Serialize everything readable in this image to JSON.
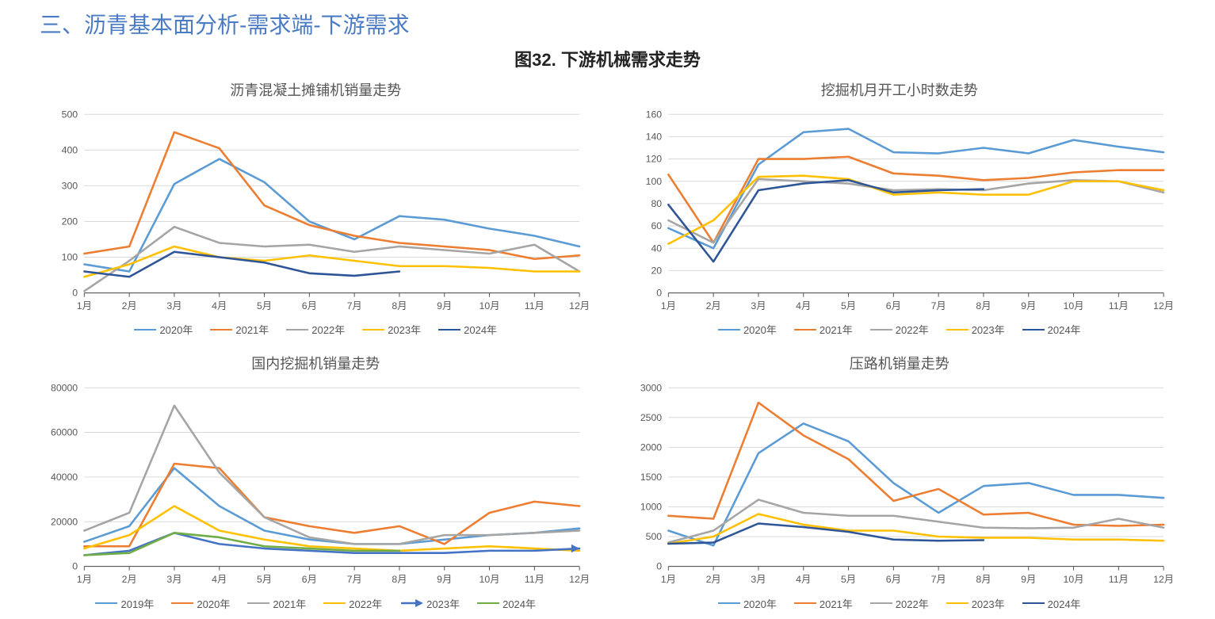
{
  "page_title": "三、沥青基本面分析-需求端-下游需求",
  "figure_title": "图32. 下游机械需求走势",
  "months": [
    "1月",
    "2月",
    "3月",
    "4月",
    "5月",
    "6月",
    "7月",
    "8月",
    "9月",
    "10月",
    "11月",
    "12月"
  ],
  "colors": {
    "c2019": "#5b9bd5",
    "c2020": "#5b9bd5",
    "c2021": "#ed7d31",
    "c2022": "#a5a5a5",
    "c2023": "#ffc000",
    "c2023arrow": "#4472c4",
    "c2024": "#2e5597",
    "c2024green": "#70ad47",
    "grid": "#d9d9d9",
    "axis": "#595959",
    "text": "#595959"
  },
  "charts": [
    {
      "id": "chart1",
      "title": "沥青混凝土摊铺机销量走势",
      "ylim": [
        0,
        500
      ],
      "ytick_step": 100,
      "legend_style": "standard",
      "series": [
        {
          "name": "2020年",
          "color": "c2020",
          "values": [
            80,
            60,
            305,
            375,
            310,
            200,
            150,
            215,
            205,
            180,
            160,
            130
          ]
        },
        {
          "name": "2021年",
          "color": "c2021",
          "values": [
            110,
            130,
            450,
            405,
            245,
            190,
            160,
            140,
            130,
            120,
            95,
            105
          ]
        },
        {
          "name": "2022年",
          "color": "c2022",
          "values": [
            5,
            90,
            185,
            140,
            130,
            135,
            115,
            130,
            120,
            110,
            135,
            60
          ]
        },
        {
          "name": "2023年",
          "color": "c2023",
          "values": [
            45,
            80,
            130,
            100,
            90,
            105,
            90,
            75,
            75,
            70,
            60,
            60
          ]
        },
        {
          "name": "2024年",
          "color": "c2024",
          "values": [
            60,
            45,
            115,
            100,
            85,
            55,
            48,
            60,
            null,
            null,
            null,
            null
          ]
        }
      ]
    },
    {
      "id": "chart2",
      "title": "挖掘机月开工小时数走势",
      "ylim": [
        0,
        160
      ],
      "ytick_step": 20,
      "legend_style": "standard",
      "series": [
        {
          "name": "2020年",
          "color": "c2020",
          "values": [
            58,
            40,
            115,
            144,
            147,
            126,
            125,
            130,
            125,
            137,
            131,
            126
          ]
        },
        {
          "name": "2021年",
          "color": "c2021",
          "values": [
            106,
            45,
            120,
            120,
            122,
            107,
            105,
            101,
            103,
            108,
            110,
            110
          ]
        },
        {
          "name": "2022年",
          "color": "c2022",
          "values": [
            65,
            45,
            102,
            100,
            98,
            92,
            93,
            92,
            98,
            101,
            100,
            90
          ]
        },
        {
          "name": "2023年",
          "color": "c2023",
          "values": [
            44,
            65,
            104,
            105,
            102,
            88,
            90,
            88,
            88,
            100,
            100,
            92
          ]
        },
        {
          "name": "2024年",
          "color": "c2024",
          "values": [
            79,
            28,
            92,
            98,
            101,
            90,
            92,
            93,
            null,
            null,
            null,
            null
          ]
        }
      ]
    },
    {
      "id": "chart3",
      "title": "国内挖掘机销量走势",
      "ylim": [
        0,
        80000
      ],
      "ytick_step": 20000,
      "legend_style": "arrow",
      "series": [
        {
          "name": "2019年",
          "color": "c2019",
          "values": [
            11000,
            18000,
            44000,
            27000,
            16000,
            12000,
            10000,
            10000,
            12000,
            14000,
            15000,
            17000
          ]
        },
        {
          "name": "2020年",
          "color": "c2021",
          "values": [
            9000,
            9000,
            46000,
            44000,
            22000,
            18000,
            15000,
            18000,
            10000,
            24000,
            29000,
            27000
          ]
        },
        {
          "name": "2021年",
          "color": "c2022",
          "values": [
            16000,
            24000,
            72000,
            42000,
            22000,
            13000,
            10000,
            10000,
            14000,
            14000,
            15000,
            16000
          ]
        },
        {
          "name": "2022年",
          "color": "c2023",
          "values": [
            8000,
            14000,
            27000,
            16000,
            12000,
            9000,
            8000,
            7000,
            8000,
            9000,
            8000,
            7000
          ]
        },
        {
          "name": "2023年",
          "color": "c2023arrow",
          "style": "arrow",
          "values": [
            5000,
            7000,
            15000,
            10000,
            8000,
            7000,
            6000,
            6000,
            6000,
            7000,
            7000,
            8000
          ]
        },
        {
          "name": "2024年",
          "color": "c2024green",
          "values": [
            5000,
            6000,
            15000,
            13000,
            9000,
            8000,
            7000,
            7000,
            null,
            null,
            null,
            null
          ]
        }
      ]
    },
    {
      "id": "chart4",
      "title": "压路机销量走势",
      "ylim": [
        0,
        3000
      ],
      "ytick_step": 500,
      "legend_style": "standard",
      "series": [
        {
          "name": "2020年",
          "color": "c2020",
          "values": [
            600,
            350,
            1900,
            2400,
            2100,
            1400,
            900,
            1350,
            1400,
            1200,
            1200,
            1150
          ]
        },
        {
          "name": "2021年",
          "color": "c2021",
          "values": [
            850,
            800,
            2750,
            2200,
            1800,
            1100,
            1300,
            870,
            900,
            700,
            680,
            700
          ]
        },
        {
          "name": "2022年",
          "color": "c2022",
          "values": [
            400,
            600,
            1120,
            900,
            850,
            850,
            750,
            650,
            640,
            650,
            800,
            650
          ]
        },
        {
          "name": "2023年",
          "color": "c2023",
          "values": [
            380,
            500,
            880,
            700,
            600,
            600,
            500,
            480,
            480,
            450,
            450,
            430
          ]
        },
        {
          "name": "2024年",
          "color": "c2024",
          "values": [
            380,
            400,
            720,
            660,
            580,
            450,
            430,
            440,
            null,
            null,
            null,
            null
          ]
        }
      ]
    }
  ]
}
